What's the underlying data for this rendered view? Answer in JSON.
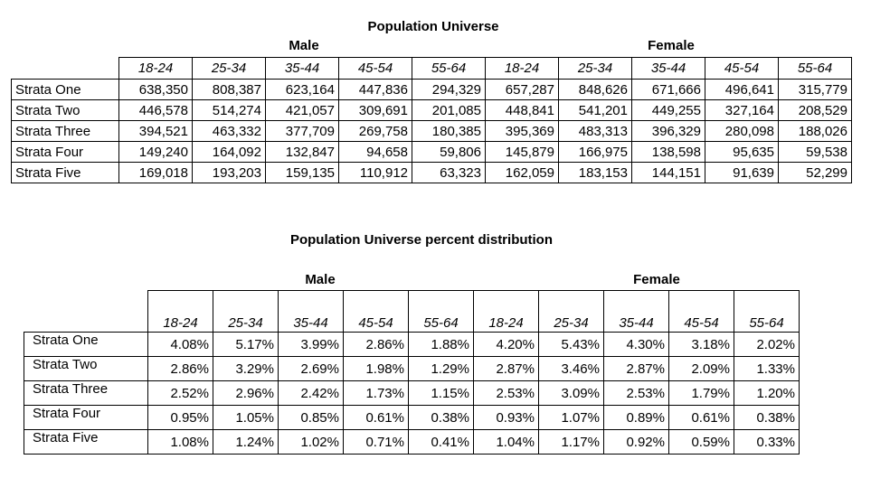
{
  "table1": {
    "title": "Population Universe",
    "male_label": "Male",
    "female_label": "Female",
    "age_groups": [
      "18-24",
      "25-34",
      "35-44",
      "45-54",
      "55-64",
      "18-24",
      "25-34",
      "35-44",
      "45-54",
      "55-64"
    ],
    "rows": [
      {
        "label": "Strata One",
        "values": [
          "638,350",
          "808,387",
          "623,164",
          "447,836",
          "294,329",
          "657,287",
          "848,626",
          "671,666",
          "496,641",
          "315,779"
        ]
      },
      {
        "label": "Strata Two",
        "values": [
          "446,578",
          "514,274",
          "421,057",
          "309,691",
          "201,085",
          "448,841",
          "541,201",
          "449,255",
          "327,164",
          "208,529"
        ]
      },
      {
        "label": "Strata Three",
        "values": [
          "394,521",
          "463,332",
          "377,709",
          "269,758",
          "180,385",
          "395,369",
          "483,313",
          "396,329",
          "280,098",
          "188,026"
        ]
      },
      {
        "label": "Strata Four",
        "values": [
          "149,240",
          "164,092",
          "132,847",
          "94,658",
          "59,806",
          "145,879",
          "166,975",
          "138,598",
          "95,635",
          "59,538"
        ]
      },
      {
        "label": "Strata Five",
        "values": [
          "169,018",
          "193,203",
          "159,135",
          "110,912",
          "63,323",
          "162,059",
          "183,153",
          "144,151",
          "91,639",
          "52,299"
        ]
      }
    ]
  },
  "table2": {
    "title": "Population Universe percent distribution",
    "male_label": "Male",
    "female_label": "Female",
    "age_groups": [
      "18-24",
      "25-34",
      "35-44",
      "45-54",
      "55-64",
      "18-24",
      "25-34",
      "35-44",
      "45-54",
      "55-64"
    ],
    "rows": [
      {
        "label": "Strata One",
        "values": [
          "4.08%",
          "5.17%",
          "3.99%",
          "2.86%",
          "1.88%",
          "4.20%",
          "5.43%",
          "4.30%",
          "3.18%",
          "2.02%"
        ]
      },
      {
        "label": "Strata Two",
        "values": [
          "2.86%",
          "3.29%",
          "2.69%",
          "1.98%",
          "1.29%",
          "2.87%",
          "3.46%",
          "2.87%",
          "2.09%",
          "1.33%"
        ]
      },
      {
        "label": "Strata Three",
        "values": [
          "2.52%",
          "2.96%",
          "2.42%",
          "1.73%",
          "1.15%",
          "2.53%",
          "3.09%",
          "2.53%",
          "1.79%",
          "1.20%"
        ]
      },
      {
        "label": "Strata Four",
        "values": [
          "0.95%",
          "1.05%",
          "0.85%",
          "0.61%",
          "0.38%",
          "0.93%",
          "1.07%",
          "0.89%",
          "0.61%",
          "0.38%"
        ]
      },
      {
        "label": "Strata Five",
        "values": [
          "1.08%",
          "1.24%",
          "1.02%",
          "0.71%",
          "0.41%",
          "1.04%",
          "1.17%",
          "0.92%",
          "0.59%",
          "0.33%"
        ]
      }
    ]
  }
}
